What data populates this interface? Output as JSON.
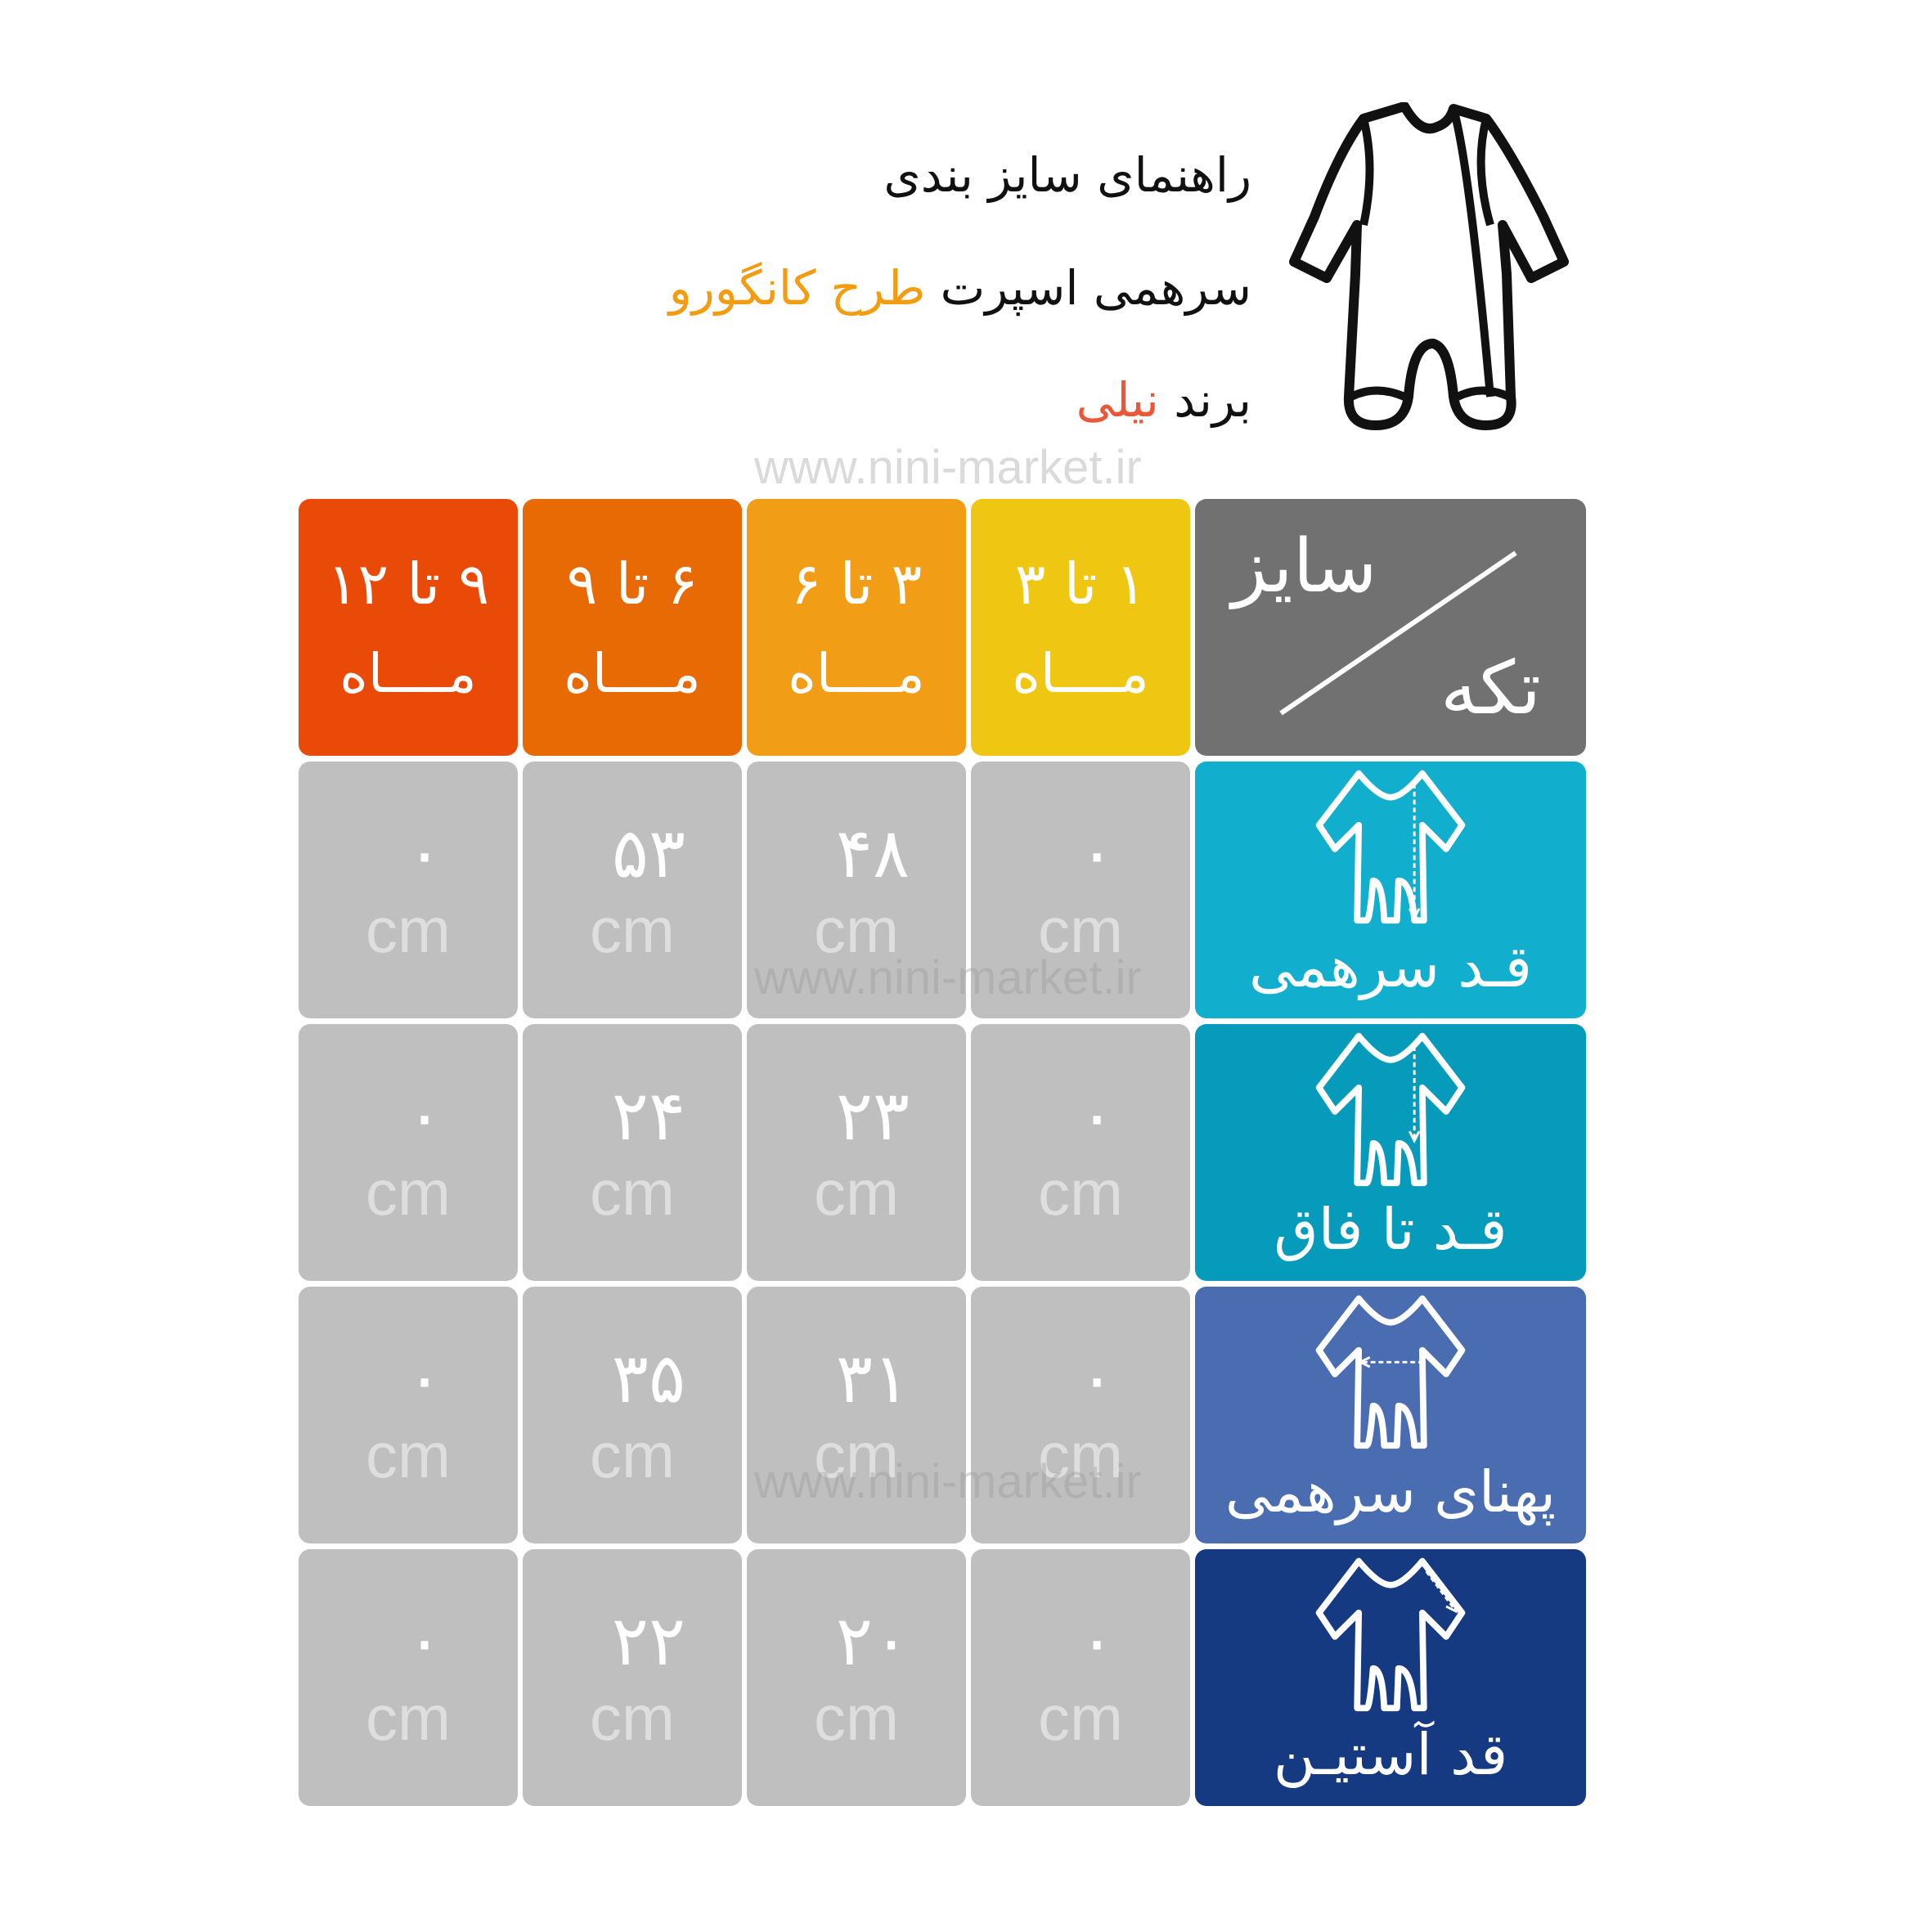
{
  "header": {
    "line1": "راهنمای سایز بندی",
    "line2_prefix": "سرهمی اسپرت",
    "line2_highlight": "طرح کانگورو",
    "line3_prefix": "برند",
    "line3_highlight": "نیلی",
    "watermark": "www.nini-market.ir"
  },
  "colors": {
    "highlight_orange": "#F39C12",
    "highlight_red": "#E8593A",
    "size_cols": [
      "#E94A07",
      "#E86A05",
      "#F19E16",
      "#EFC712"
    ],
    "corner": "#717171",
    "rows": [
      "#12AECE",
      "#069BBA",
      "#4A6DB1",
      "#153A82"
    ],
    "cell": "#BFBFBF"
  },
  "table": {
    "corner_top": "سایز",
    "corner_bottom": "تکه",
    "columns": [
      {
        "range": "۹ تا ۱۲",
        "unit": "مــــاه"
      },
      {
        "range": "۶ تا ۹",
        "unit": "مــــاه"
      },
      {
        "range": "۳ تا ۶",
        "unit": "مــــاه"
      },
      {
        "range": "۱ تا ۳",
        "unit": "مــــاه"
      }
    ],
    "rows": [
      {
        "label": "قـد سرهمی",
        "icon": "onesie-length-icon",
        "values": [
          "۰",
          "۵۳",
          "۴۸",
          "۰"
        ]
      },
      {
        "label": "قـد تا فاق",
        "icon": "onesie-crotch-icon",
        "values": [
          "۰",
          "۲۴",
          "۲۳",
          "۰"
        ]
      },
      {
        "label": "پهنای سرهمی",
        "icon": "onesie-width-icon",
        "values": [
          "۰",
          "۳۵",
          "۳۱",
          "۰"
        ]
      },
      {
        "label": "قد آستیـن",
        "icon": "onesie-sleeve-icon",
        "values": [
          "۰",
          "۲۲",
          "۲۰",
          "۰"
        ]
      }
    ],
    "unit": "cm"
  }
}
